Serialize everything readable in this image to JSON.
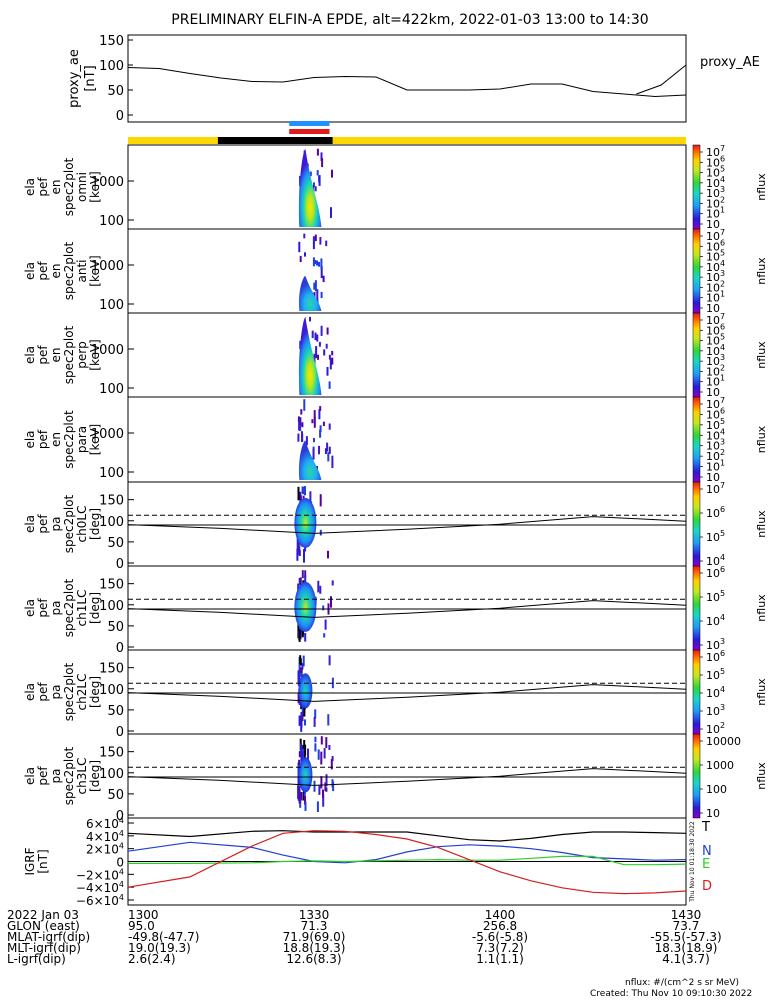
{
  "title": "PRELIMINARY ELFIN-A EPDE, alt=422km, 2022-01-03 13:00 to 14:30",
  "colors": {
    "phase_yellow": "#ffd700",
    "phase_black": "#000000",
    "fgm_blue": "#1e90ff",
    "fgm_red": "#e31a1c",
    "ae_line": "#000000",
    "igrf_T": "#000000",
    "igrf_N": "#1f3fd6",
    "igrf_E": "#2ecc2e",
    "igrf_D": "#d4201f"
  },
  "panels": [
    {
      "ylabel_lines": [
        "proxy_ae",
        "[nT]"
      ],
      "right_label": "proxy_AE"
    },
    {
      "ylabel_lines": [
        "ela",
        "pef",
        "en",
        "spec2plot",
        "omni",
        "[keV]"
      ],
      "cb_label": "nflux"
    },
    {
      "ylabel_lines": [
        "ela",
        "pef",
        "en",
        "spec2plot",
        "anti",
        "[keV]"
      ],
      "cb_label": "nflux"
    },
    {
      "ylabel_lines": [
        "ela",
        "pef",
        "en",
        "spec2plot",
        "perp",
        "[keV]"
      ],
      "cb_label": "nflux"
    },
    {
      "ylabel_lines": [
        "ela",
        "pef",
        "en",
        "spec2plot",
        "para",
        "[keV]"
      ],
      "cb_label": "nflux"
    },
    {
      "ylabel_lines": [
        "ela",
        "pef",
        "pa",
        "spec2plot",
        "ch0LC",
        "[deg]"
      ],
      "cb_label": "nflux"
    },
    {
      "ylabel_lines": [
        "ela",
        "pef",
        "pa",
        "spec2plot",
        "ch1LC",
        "[deg]"
      ],
      "cb_label": "nflux"
    },
    {
      "ylabel_lines": [
        "ela",
        "pef",
        "pa",
        "spec2plot",
        "ch2LC",
        "[deg]"
      ],
      "cb_label": "nflux"
    },
    {
      "ylabel_lines": [
        "ela",
        "pef",
        "pa",
        "spec2plot",
        "ch3LC",
        "[deg]"
      ],
      "cb_label": "nflux"
    },
    {
      "ylabel_lines": [
        "IGRF",
        "[nT]"
      ]
    }
  ],
  "igrf_labels": [
    "T",
    "N",
    "E",
    "D"
  ],
  "colorbar_ticks": [
    [
      "10",
      "10",
      "10",
      "10",
      "10",
      "10",
      "10",
      "10"
    ],
    [
      "10",
      "10",
      "10",
      "10",
      "10",
      "10",
      "10",
      "10"
    ],
    [
      "10",
      "10",
      "10",
      "10",
      "10",
      "10",
      "10",
      "10"
    ],
    [
      "10",
      "10",
      "10",
      "10",
      "10",
      "10",
      "10",
      "10"
    ],
    [
      "10",
      "10",
      "10",
      "10"
    ],
    [
      "10",
      "10",
      "10",
      "10"
    ],
    [
      "10",
      "10",
      "10",
      "10",
      "10"
    ],
    [
      "10000",
      "1000",
      "100",
      "10"
    ]
  ],
  "colorbar_exponents": [
    [
      "7",
      "6",
      "5",
      "4",
      "3",
      "2",
      "1",
      ""
    ],
    [
      "7",
      "6",
      "5",
      "4",
      "3",
      "2",
      "1",
      ""
    ],
    [
      "7",
      "6",
      "5",
      "4",
      "3",
      "2",
      "1",
      ""
    ],
    [
      "7",
      "6",
      "5",
      "4",
      "3",
      "2",
      "1",
      ""
    ],
    [
      "7",
      "6",
      "5",
      "4"
    ],
    [
      "6",
      "5",
      "4",
      "3"
    ],
    [
      "6",
      "5",
      "4",
      "3",
      "2"
    ],
    [
      "",
      "",
      "",
      ""
    ]
  ],
  "energy_ticks": [
    "1000",
    "100"
  ],
  "pa_ticks": [
    "150",
    "100",
    "50",
    "0"
  ],
  "ae_ticks": [
    "150",
    "100",
    "50",
    "0"
  ],
  "igrf_ticks": [
    "6×10",
    "4×10",
    "2×10",
    "0",
    "−2×10",
    "−4×10",
    "−6×10"
  ],
  "igrf_tick_exp": "4",
  "chart_data": {
    "type": "line",
    "title": "PRELIMINARY ELFIN-A EPDE, alt=422km, 2022-01-03 13:00 to 14:30",
    "x_ticks": [
      "1300",
      "1330",
      "1400",
      "1430"
    ],
    "proxy_ae": {
      "ylim": [
        0,
        160
      ],
      "time_min": [
        0,
        5,
        10,
        15,
        20,
        25,
        30,
        35,
        40,
        45,
        50,
        55,
        60,
        65,
        70,
        75,
        80,
        85,
        90
      ],
      "values": [
        95,
        93,
        83,
        74,
        67,
        66,
        75,
        77,
        76,
        50,
        50,
        50,
        52,
        62,
        62,
        47,
        42,
        37,
        40
      ]
    },
    "ae_tail": {
      "time_min": [
        82,
        86,
        90
      ],
      "values": [
        42,
        60,
        100
      ]
    },
    "spectrogram_window_min": [
      27,
      33
    ],
    "pa_reference_deg": {
      "loss_cone_dashed": 113,
      "time_min": [
        0,
        15,
        30,
        45,
        60,
        75,
        90
      ],
      "anti_loss_cone": [
        91,
        82,
        70,
        80,
        92,
        110,
        99
      ]
    },
    "igrf_nT": {
      "ylim": [
        -65000,
        65000
      ],
      "time_min": [
        0,
        10,
        20,
        25,
        30,
        35,
        40,
        45,
        50,
        55,
        60,
        65,
        70,
        75,
        80,
        85,
        90
      ],
      "T": [
        44000,
        39000,
        47000,
        48000,
        46000,
        46000,
        46000,
        46000,
        40000,
        34000,
        32000,
        36000,
        42000,
        46000,
        46000,
        45000,
        44000
      ],
      "N": [
        16000,
        30000,
        22000,
        10000,
        0,
        -2000,
        3000,
        15000,
        23000,
        26000,
        24000,
        20000,
        14000,
        6000,
        4000,
        2000,
        3000
      ],
      "E": [
        -3000,
        -3000,
        -2000,
        0,
        1000,
        0,
        1000,
        2000,
        3000,
        2000,
        2000,
        5000,
        8000,
        8000,
        -5000,
        -5000,
        -4000
      ],
      "D": [
        -40000,
        -24000,
        24000,
        44000,
        48000,
        47000,
        42000,
        35000,
        22000,
        3000,
        -16000,
        -30000,
        -41000,
        -48000,
        -50000,
        -49000,
        -46000
      ]
    }
  },
  "bottom_rows": [
    {
      "label": "2022 Jan 03",
      "v": [
        "1300",
        "1330",
        "1400",
        "1430"
      ]
    },
    {
      "label": "GLON (east)",
      "v": [
        "95.0",
        "71.3",
        "256.8",
        "73.7"
      ]
    },
    {
      "label": "MLAT-igrf(dip)",
      "v": [
        "-49.8(-47.7)",
        "71.9(69.0)",
        "-5.6(-5.8)",
        "-55.5(-57.3)"
      ]
    },
    {
      "label": "MLT-igrf(dip)",
      "v": [
        "19.0(19.3)",
        "18.8(19.3)",
        "7.3(7.2)",
        "18.3(18.9)"
      ]
    },
    {
      "label": "L-igrf(dip)",
      "v": [
        "2.6(2.4)",
        "12.6(8.3)",
        "1.1(1.1)",
        "4.1(3.7)"
      ]
    }
  ],
  "footer": {
    "units": "nflux: #/(cm^2 s sr MeV)",
    "created": "Created: Thu Nov 10 09:10:30 2022",
    "side_stamp": "Thu Nov 10 01:18:30 2022"
  }
}
